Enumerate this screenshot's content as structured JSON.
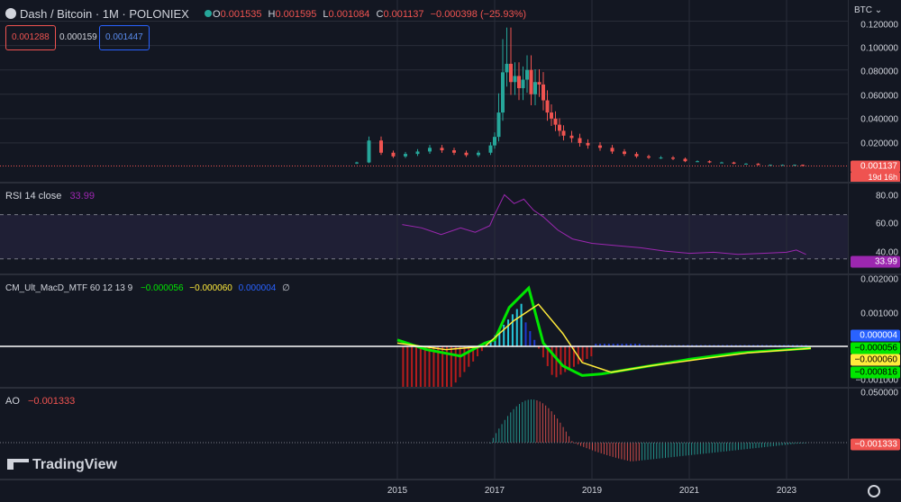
{
  "header": {
    "symbol": "Dash / Bitcoin · 1M · POLONIEX",
    "o_label": "O",
    "o_value": "0.001535",
    "h_label": "H",
    "h_value": "0.001595",
    "l_label": "L",
    "l_value": "0.001084",
    "c_label": "C",
    "c_value": "0.001137",
    "change": "−0.000398 (−25.93%)"
  },
  "quotes": {
    "bid": "0.001288",
    "spread": "0.000159",
    "ask": "0.001447"
  },
  "currency_button": "BTC",
  "price_axis": {
    "ticks": [
      "0.120000",
      "0.100000",
      "0.080000",
      "0.060000",
      "0.040000",
      "0.020000"
    ],
    "last_price": "0.001137",
    "countdown": "19d 16h"
  },
  "rsi": {
    "title": "RSI 14 close",
    "value": "33.99",
    "ticks": [
      "80.00",
      "60.00",
      "40.00"
    ],
    "tag": "33.99"
  },
  "macd": {
    "title": "CM_Ult_MacD_MTF 60 12 13 9",
    "v1": "−0.000056",
    "v2": "−0.000060",
    "v3": "0.000004",
    "v4": "∅",
    "ticks": [
      "0.002000",
      "0.001000",
      "−0.001000"
    ],
    "tags": [
      "0.000004",
      "−0.000056",
      "−0.000060",
      "−0.000816"
    ]
  },
  "ao": {
    "title": "AO",
    "value": "−0.001333",
    "ticks": [
      "0.050000"
    ],
    "tag": "−0.001333"
  },
  "time_axis": [
    "2015",
    "2017",
    "2019",
    "2021",
    "2023"
  ],
  "logo": "TradingView",
  "colors": {
    "bg": "#131722",
    "up": "#26a69a",
    "down": "#ef5350",
    "rsi": "#9c27b0",
    "macd_up": "#00e600",
    "macd_down": "#ff1a1a",
    "signal": "#ffeb3b"
  },
  "chart_data": {
    "type": "candlestick",
    "x": [
      "2014-03",
      "2014-06",
      "2014-09",
      "2014-12",
      "2015-03",
      "2015-06",
      "2015-09",
      "2015-12",
      "2016-03",
      "2016-06",
      "2016-09",
      "2016-12",
      "2017-01",
      "2017-02",
      "2017-03",
      "2017-04",
      "2017-05",
      "2017-06",
      "2017-07",
      "2017-08",
      "2017-09",
      "2017-10",
      "2017-11",
      "2017-12",
      "2018-01",
      "2018-02",
      "2018-03",
      "2018-04",
      "2018-05",
      "2018-06",
      "2018-08",
      "2018-10",
      "2018-12",
      "2019-03",
      "2019-06",
      "2019-09",
      "2019-12",
      "2020-03",
      "2020-06",
      "2020-09",
      "2020-12",
      "2021-03",
      "2021-06",
      "2021-09",
      "2021-12",
      "2022-03",
      "2022-06",
      "2022-09",
      "2022-12",
      "2023-03",
      "2023-05"
    ],
    "close": [
      0.004,
      0.022,
      0.012,
      0.009,
      0.011,
      0.013,
      0.016,
      0.014,
      0.012,
      0.01,
      0.012,
      0.018,
      0.025,
      0.045,
      0.078,
      0.085,
      0.07,
      0.075,
      0.065,
      0.072,
      0.08,
      0.06,
      0.07,
      0.068,
      0.055,
      0.045,
      0.04,
      0.035,
      0.03,
      0.026,
      0.024,
      0.02,
      0.018,
      0.016,
      0.013,
      0.011,
      0.009,
      0.008,
      0.008,
      0.007,
      0.005,
      0.005,
      0.004,
      0.004,
      0.003,
      0.003,
      0.002,
      0.002,
      0.002,
      0.002,
      0.001137
    ],
    "ylim": [
      0,
      0.13
    ],
    "rsi": {
      "ylim": [
        20,
        90
      ],
      "upper": 70,
      "lower": 30
    },
    "ao": {
      "last": -0.001333
    }
  }
}
